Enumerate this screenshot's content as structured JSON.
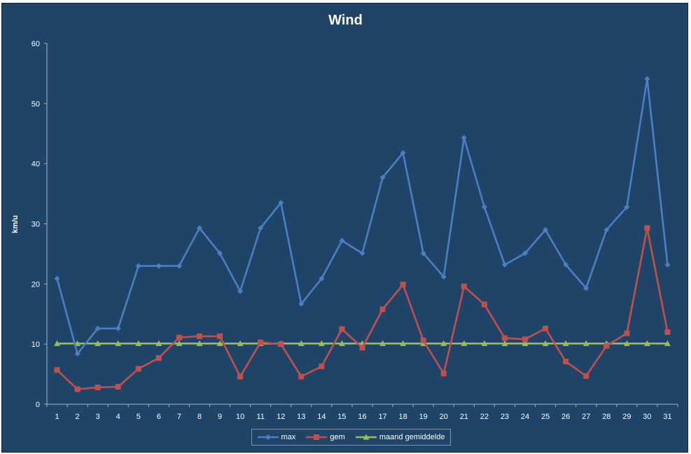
{
  "chart_data": {
    "type": "line",
    "title": "Wind",
    "ylabel": "km/u",
    "xlabel": "",
    "categories": [
      "1",
      "2",
      "3",
      "4",
      "5",
      "6",
      "7",
      "8",
      "9",
      "10",
      "11",
      "12",
      "13",
      "14",
      "15",
      "16",
      "17",
      "18",
      "19",
      "20",
      "21",
      "22",
      "23",
      "24",
      "25",
      "26",
      "27",
      "28",
      "29",
      "30",
      "31"
    ],
    "ylim": [
      0,
      60
    ],
    "yticks": [
      0,
      10,
      20,
      30,
      40,
      50,
      60
    ],
    "grid": false,
    "legend_position": "bottom",
    "series": [
      {
        "name": "max",
        "color": "#4a7fc1",
        "marker": "diamond",
        "values": [
          20.9,
          8.4,
          12.6,
          12.6,
          23.0,
          23.0,
          23.0,
          29.3,
          25.1,
          18.8,
          29.3,
          33.5,
          16.7,
          20.9,
          27.2,
          25.1,
          37.7,
          41.8,
          25.1,
          21.2,
          44.3,
          32.8,
          23.2,
          25.1,
          29.0,
          23.2,
          19.3,
          29.0,
          32.8,
          54.1,
          23.2
        ]
      },
      {
        "name": "gem",
        "color": "#c0504d",
        "marker": "square",
        "values": [
          5.7,
          2.5,
          2.8,
          2.9,
          5.9,
          7.7,
          11.1,
          11.3,
          11.3,
          4.6,
          10.3,
          10.0,
          4.6,
          6.3,
          12.5,
          9.4,
          15.8,
          19.9,
          10.6,
          5.1,
          19.6,
          16.6,
          11.0,
          10.8,
          12.6,
          7.1,
          4.7,
          9.7,
          11.8,
          29.3,
          12.0
        ]
      },
      {
        "name": "maand gemiddelde",
        "color": "#9bbb59",
        "marker": "triangle",
        "values": [
          10.1,
          10.1,
          10.1,
          10.1,
          10.1,
          10.1,
          10.1,
          10.1,
          10.1,
          10.1,
          10.1,
          10.1,
          10.1,
          10.1,
          10.1,
          10.1,
          10.1,
          10.1,
          10.1,
          10.1,
          10.1,
          10.1,
          10.1,
          10.1,
          10.1,
          10.1,
          10.1,
          10.1,
          10.1,
          10.1,
          10.1
        ]
      }
    ]
  },
  "colors": {
    "background": "#1f4468",
    "axis": "#9fb3c8",
    "text": "#ffffff"
  }
}
